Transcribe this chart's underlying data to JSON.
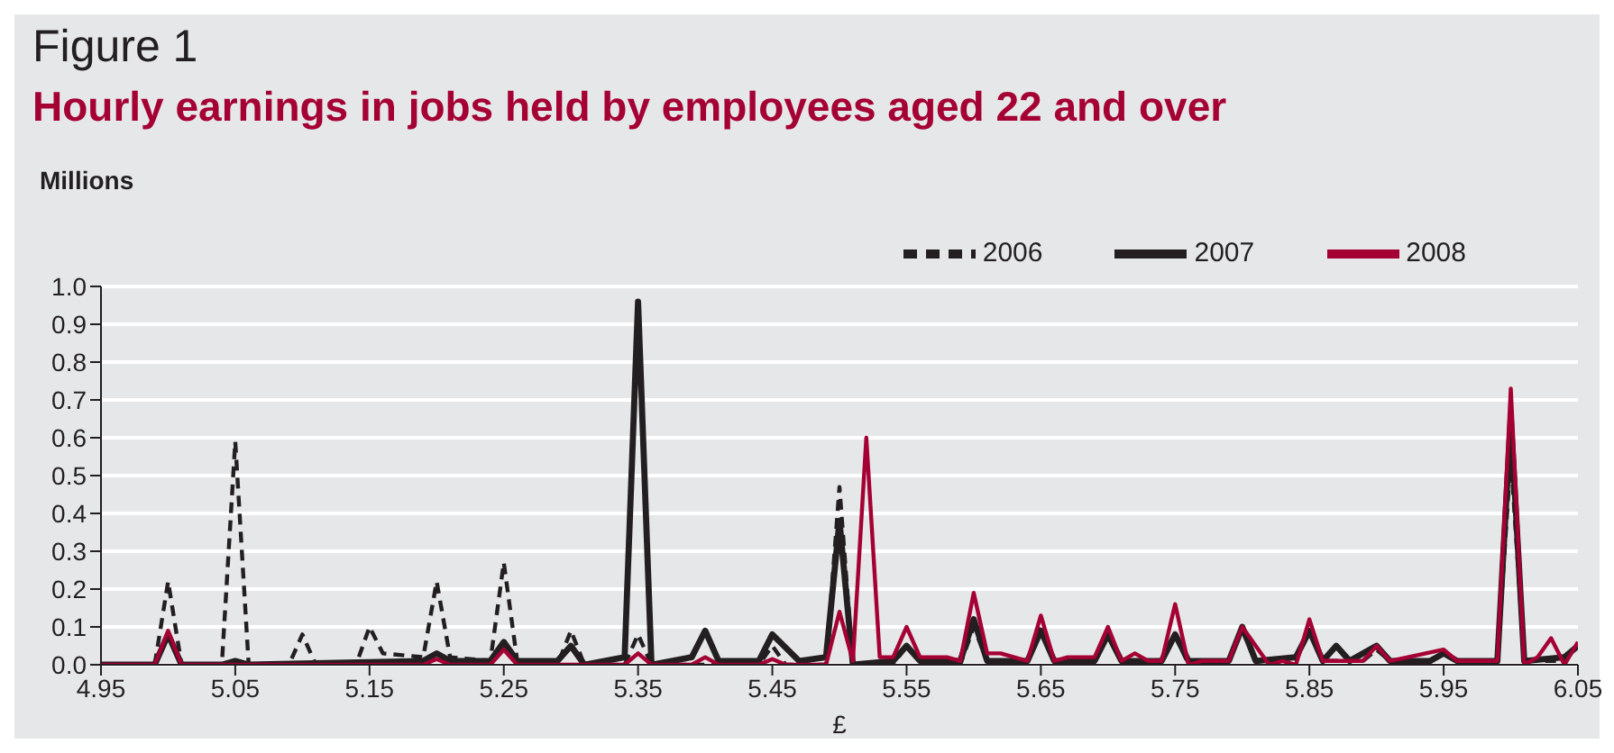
{
  "chart_data": {
    "type": "line",
    "title": "Figure 1",
    "subtitle": "Hourly earnings in jobs held by employees aged 22 and over",
    "ylabel": "Millions",
    "xlabel": "£",
    "xlim": [
      4.95,
      6.05
    ],
    "xticks": [
      {
        "value": 4.95,
        "label": "4.95"
      },
      {
        "value": 5.05,
        "label": "5.05"
      },
      {
        "value": 5.15,
        "label": "5.15"
      },
      {
        "value": 5.25,
        "label": "5.25"
      },
      {
        "value": 5.35,
        "label": "5.35"
      },
      {
        "value": 5.45,
        "label": "5.45"
      },
      {
        "value": 5.55,
        "label": "5.55"
      },
      {
        "value": 5.65,
        "label": "5.65"
      },
      {
        "value": 5.75,
        "label": "5.75"
      },
      {
        "value": 5.85,
        "label": "5.85"
      },
      {
        "value": 5.95,
        "label": "5.95"
      },
      {
        "value": 6.05,
        "label": "6.05"
      }
    ],
    "ylim": [
      0,
      1
    ],
    "yticks": [
      {
        "value": 0,
        "label": "0.0"
      },
      {
        "value": 0.1,
        "label": "0.1"
      },
      {
        "value": 0.2,
        "label": "0.2"
      },
      {
        "value": 0.3,
        "label": "0.3"
      },
      {
        "value": 0.4,
        "label": "0.4"
      },
      {
        "value": 0.5,
        "label": "0.5"
      },
      {
        "value": 0.6,
        "label": "0.6"
      },
      {
        "value": 0.7,
        "label": "0.7"
      },
      {
        "value": 0.8,
        "label": "0.8"
      },
      {
        "value": 0.9,
        "label": "0.9"
      },
      {
        "value": 1,
        "label": "1.0"
      }
    ],
    "grid": "y",
    "legend": "top right",
    "marker": "none",
    "series": [
      {
        "name": "2006",
        "color": "#231f20",
        "line_style": "dashed",
        "x": [
          4.95,
          4.99,
          5.0,
          5.01,
          5.04,
          5.05,
          5.06,
          5.09,
          5.1,
          5.11,
          5.14,
          5.15,
          5.16,
          5.19,
          5.2,
          5.21,
          5.24,
          5.25,
          5.26,
          5.29,
          5.3,
          5.31,
          5.34,
          5.35,
          5.36,
          5.44,
          5.45,
          5.46,
          5.49,
          5.5,
          5.51,
          5.54,
          5.55,
          5.56,
          5.59,
          5.6,
          5.61,
          5.64,
          5.65,
          5.66,
          5.69,
          5.7,
          5.71,
          5.74,
          5.75,
          5.76,
          5.79,
          5.8,
          5.81,
          5.84,
          5.85,
          5.86,
          5.89,
          5.9,
          5.91,
          5.94,
          5.95,
          5.96,
          5.99,
          6.0,
          6.01,
          6.04,
          6.05
        ],
        "values": [
          0,
          0,
          0.22,
          0,
          0,
          0.59,
          0,
          0,
          0.08,
          0,
          0,
          0.1,
          0.03,
          0.02,
          0.22,
          0.02,
          0.01,
          0.27,
          0.01,
          0,
          0.09,
          0,
          0,
          0.08,
          0,
          0,
          0.05,
          0,
          0,
          0.47,
          0,
          0,
          0.05,
          0.01,
          0,
          0.1,
          0.01,
          0.01,
          0.1,
          0.01,
          0.01,
          0.08,
          0.01,
          0.01,
          0.08,
          0,
          0.01,
          0.09,
          0.01,
          0.01,
          0.09,
          0.01,
          0.01,
          0.04,
          0.01,
          0.01,
          0.03,
          0.01,
          0.01,
          0.55,
          0.01,
          0.01,
          0.05
        ]
      },
      {
        "name": "2007",
        "color": "#231f20",
        "line_style": "solid",
        "x": [
          4.95,
          4.99,
          5.0,
          5.01,
          5.04,
          5.05,
          5.06,
          5.19,
          5.2,
          5.21,
          5.24,
          5.25,
          5.26,
          5.29,
          5.3,
          5.31,
          5.34,
          5.35,
          5.36,
          5.39,
          5.4,
          5.41,
          5.44,
          5.45,
          5.47,
          5.49,
          5.5,
          5.51,
          5.54,
          5.55,
          5.56,
          5.59,
          5.6,
          5.61,
          5.64,
          5.65,
          5.66,
          5.69,
          5.7,
          5.71,
          5.74,
          5.75,
          5.76,
          5.79,
          5.8,
          5.81,
          5.84,
          5.85,
          5.86,
          5.87,
          5.88,
          5.9,
          5.91,
          5.94,
          5.95,
          5.96,
          5.99,
          6.0,
          6.01,
          6.04,
          6.05
        ],
        "values": [
          0,
          0,
          0.08,
          0,
          0,
          0.01,
          0,
          0.01,
          0.03,
          0.01,
          0.01,
          0.06,
          0.01,
          0.01,
          0.05,
          0,
          0.02,
          0.96,
          0,
          0.02,
          0.09,
          0.01,
          0.01,
          0.08,
          0.01,
          0.02,
          0.38,
          0,
          0.01,
          0.05,
          0.01,
          0.01,
          0.12,
          0.01,
          0.01,
          0.09,
          0.01,
          0.01,
          0.08,
          0.01,
          0.01,
          0.08,
          0.01,
          0.01,
          0.1,
          0.01,
          0.02,
          0.09,
          0.01,
          0.05,
          0.01,
          0.05,
          0.01,
          0.01,
          0.03,
          0.01,
          0.01,
          0.65,
          0.01,
          0.02,
          0.05
        ]
      },
      {
        "name": "2008",
        "color": "#a50034",
        "line_style": "solid",
        "x": [
          4.95,
          4.99,
          5.0,
          5.01,
          5.19,
          5.2,
          5.21,
          5.24,
          5.25,
          5.26,
          5.34,
          5.35,
          5.36,
          5.39,
          5.4,
          5.41,
          5.44,
          5.45,
          5.46,
          5.49,
          5.5,
          5.51,
          5.52,
          5.53,
          5.54,
          5.55,
          5.56,
          5.58,
          5.59,
          5.6,
          5.61,
          5.62,
          5.64,
          5.65,
          5.66,
          5.67,
          5.69,
          5.7,
          5.71,
          5.72,
          5.73,
          5.74,
          5.75,
          5.76,
          5.77,
          5.79,
          5.8,
          5.82,
          5.83,
          5.84,
          5.85,
          5.86,
          5.87,
          5.89,
          5.9,
          5.91,
          5.95,
          5.96,
          5.98,
          5.99,
          6.0,
          6.01,
          6.02,
          6.03,
          6.04,
          6.05
        ],
        "values": [
          0,
          0,
          0.09,
          0,
          0,
          0.015,
          0,
          0,
          0.04,
          0,
          0,
          0.03,
          0,
          0,
          0.02,
          0,
          0,
          0.015,
          0,
          0,
          0.14,
          0.01,
          0.6,
          0.02,
          0.02,
          0.1,
          0.02,
          0.02,
          0.01,
          0.19,
          0.03,
          0.03,
          0.01,
          0.13,
          0.01,
          0.02,
          0.02,
          0.1,
          0.01,
          0.03,
          0.01,
          0.01,
          0.16,
          0,
          0.01,
          0.01,
          0.1,
          0,
          0.01,
          0,
          0.12,
          0.01,
          0.01,
          0.01,
          0.05,
          0.01,
          0.04,
          0.01,
          0.01,
          0.01,
          0.73,
          0,
          0.02,
          0.07,
          0,
          0.06
        ]
      }
    ]
  }
}
